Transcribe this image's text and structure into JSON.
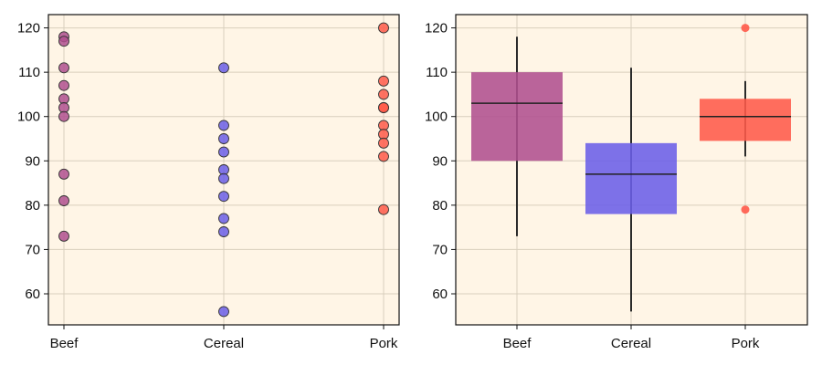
{
  "chart_data": [
    {
      "type": "scatter",
      "categories": [
        "Beef",
        "Cereal",
        "Pork"
      ],
      "ylim": [
        53,
        123
      ],
      "yticks": [
        60,
        70,
        80,
        90,
        100,
        110,
        120
      ],
      "grid": true,
      "background": "#fff5e6",
      "series": [
        {
          "category": "Beef",
          "color": "#b0508f",
          "values": [
            118,
            117,
            111,
            107,
            104,
            102,
            100,
            87,
            81,
            73
          ]
        },
        {
          "category": "Cereal",
          "color": "#6b5ee8",
          "values": [
            111,
            98,
            95,
            92,
            88,
            86,
            82,
            77,
            74,
            56
          ]
        },
        {
          "category": "Pork",
          "color": "#ff5a4a",
          "values": [
            120,
            108,
            105,
            102,
            102,
            98,
            96,
            94,
            91,
            79
          ]
        }
      ]
    },
    {
      "type": "box",
      "categories": [
        "Beef",
        "Cereal",
        "Pork"
      ],
      "ylim": [
        53,
        123
      ],
      "yticks": [
        60,
        70,
        80,
        90,
        100,
        110,
        120
      ],
      "grid": true,
      "background": "#fff5e6",
      "boxes": [
        {
          "category": "Beef",
          "color": "#b0508f",
          "whisker_low": 73,
          "q1": 90,
          "median": 103,
          "q3": 110,
          "whisker_high": 118,
          "outliers": []
        },
        {
          "category": "Cereal",
          "color": "#6b5ee8",
          "whisker_low": 56,
          "q1": 78,
          "median": 87,
          "q3": 94,
          "whisker_high": 111,
          "outliers": []
        },
        {
          "category": "Pork",
          "color": "#ff5a4a",
          "whisker_low": 91,
          "q1": 94.5,
          "median": 100,
          "q3": 104,
          "whisker_high": 108,
          "outliers": [
            120,
            79
          ]
        }
      ]
    }
  ]
}
